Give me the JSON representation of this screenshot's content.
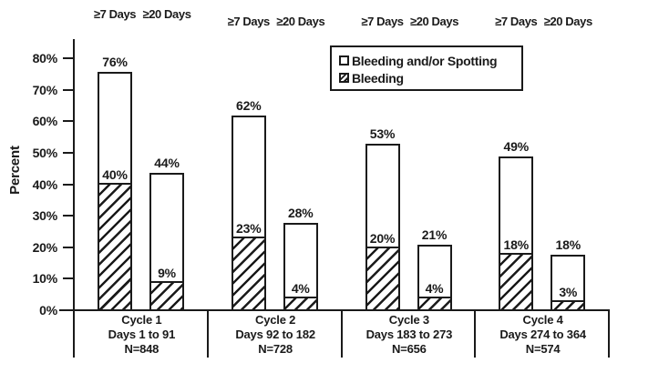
{
  "chart_data": {
    "type": "bar",
    "title": "",
    "ylabel": "Percent",
    "ylim": [
      0,
      80
    ],
    "ytick_labels": [
      "0%",
      "10%",
      "20%",
      "30%",
      "40%",
      "50%",
      "60%",
      "70%",
      "80%"
    ],
    "grid": false,
    "legend_position": "top-center-inside",
    "legend_items": [
      {
        "label": "Bleeding and/or Spotting",
        "marker": "open-square"
      },
      {
        "label": "Bleeding",
        "marker": "hatched-square"
      }
    ],
    "value_suffix": "%",
    "groups": [
      {
        "cycle": "Cycle 1",
        "days": "Days 1 to 91",
        "n": "N=848",
        "bars": [
          {
            "duration": "≥7 Days",
            "bleeding_and_or_spotting": 76,
            "bleeding": 40
          },
          {
            "duration": "≥20 Days",
            "bleeding_and_or_spotting": 44,
            "bleeding": 9
          }
        ]
      },
      {
        "cycle": "Cycle 2",
        "days": "Days 92 to 182",
        "n": "N=728",
        "bars": [
          {
            "duration": "≥7 Days",
            "bleeding_and_or_spotting": 62,
            "bleeding": 23
          },
          {
            "duration": "≥20 Days",
            "bleeding_and_or_spotting": 28,
            "bleeding": 4
          }
        ]
      },
      {
        "cycle": "Cycle 3",
        "days": "Days 183 to 273",
        "n": "N=656",
        "bars": [
          {
            "duration": "≥7 Days",
            "bleeding_and_or_spotting": 53,
            "bleeding": 20
          },
          {
            "duration": "≥20 Days",
            "bleeding_and_or_spotting": 21,
            "bleeding": 4
          }
        ]
      },
      {
        "cycle": "Cycle 4",
        "days": "Days 274 to 364",
        "n": "N=574",
        "bars": [
          {
            "duration": "≥7 Days",
            "bleeding_and_or_spotting": 49,
            "bleeding": 18
          },
          {
            "duration": "≥20 Days",
            "bleeding_and_or_spotting": 18,
            "bleeding": 3
          }
        ]
      }
    ],
    "colors": {
      "line": "#1a1a1a",
      "text": "#1a1a1a",
      "bar_fill": "#ffffff",
      "background": "#ffffff"
    }
  }
}
